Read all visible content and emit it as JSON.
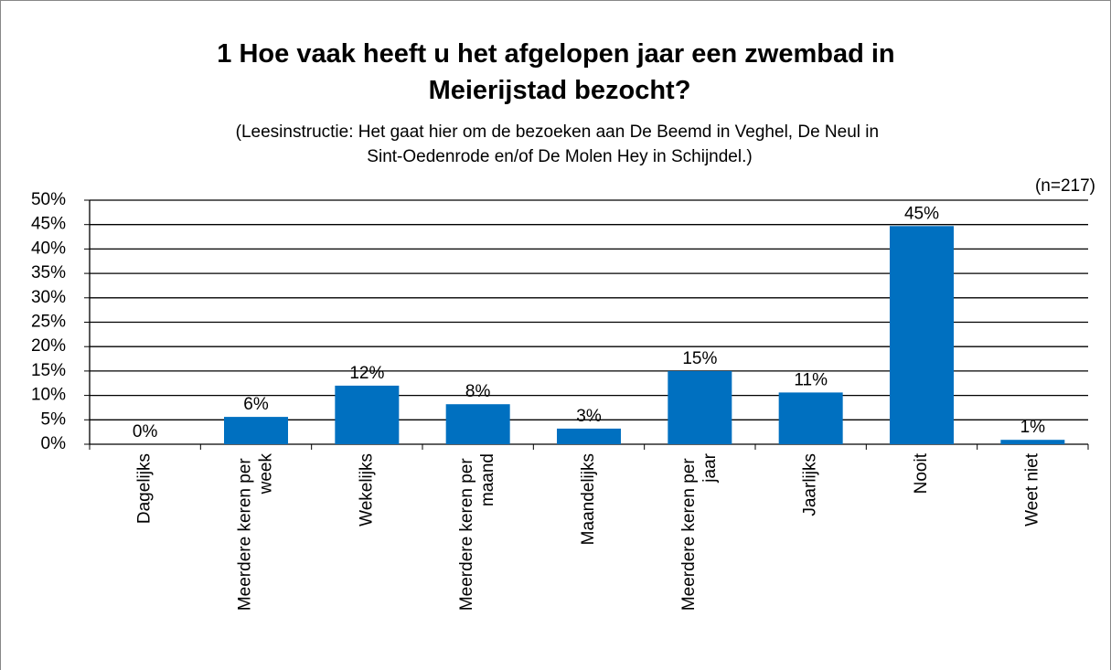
{
  "chart_data": {
    "type": "bar",
    "title": "1 Hoe vaak heeft u het afgelopen jaar een zwembad in Meierijstad bezocht?",
    "subtitle": "(Leesinstructie: Het gaat hier om de bezoeken aan De Beemd in Veghel, De Neul in Sint-Oedenrode en/of De Molen Hey in Schijndel.)",
    "annotation": "(n=217)",
    "categories": [
      "Dagelijks",
      "Meerdere keren per week",
      "Wekelijks",
      "Meerdere keren per maand",
      "Maandelijks",
      "Meerdere keren per jaar",
      "Jaarlijks",
      "Nooit",
      "Weet niet"
    ],
    "values": [
      0,
      5.6,
      12,
      8.2,
      3.2,
      15,
      10.6,
      44.7,
      0.9
    ],
    "value_labels": [
      "0%",
      "6%",
      "12%",
      "8%",
      "3%",
      "15%",
      "11%",
      "45%",
      "1%"
    ],
    "color": "#0070c0",
    "ylim": [
      0,
      50
    ],
    "yticks": [
      {
        "value": 0,
        "label": "0%"
      },
      {
        "value": 5,
        "label": "5%"
      },
      {
        "value": 10,
        "label": "10%"
      },
      {
        "value": 15,
        "label": "15%"
      },
      {
        "value": 20,
        "label": "20%"
      },
      {
        "value": 25,
        "label": "25%"
      },
      {
        "value": 30,
        "label": "30%"
      },
      {
        "value": 35,
        "label": "35%"
      },
      {
        "value": 40,
        "label": "40%"
      },
      {
        "value": 45,
        "label": "45%"
      },
      {
        "value": 50,
        "label": "50%"
      }
    ],
    "grid": true
  }
}
